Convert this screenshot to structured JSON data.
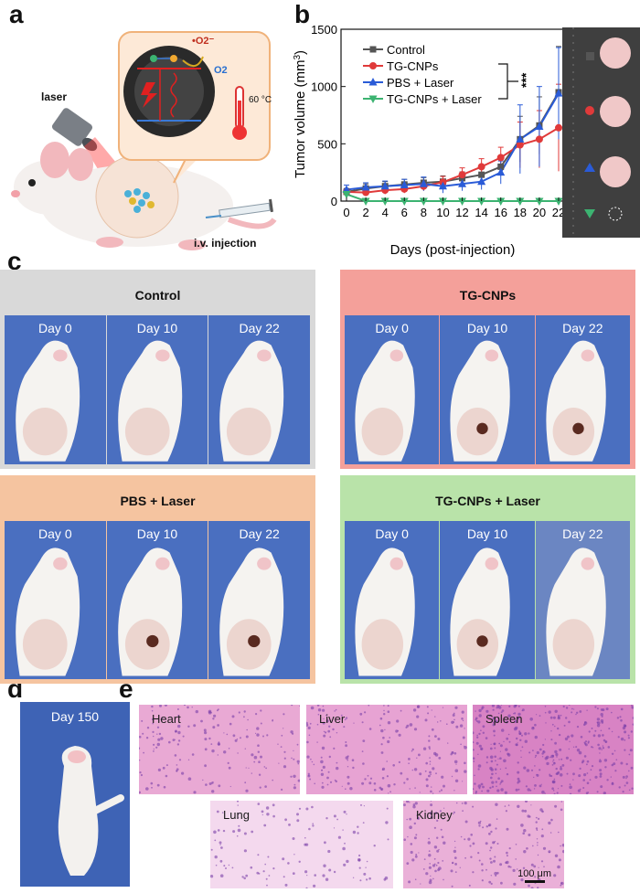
{
  "panel_labels": {
    "a": "a",
    "b": "b",
    "c": "c",
    "d": "d",
    "e": "e"
  },
  "panel_a": {
    "laser_label": "laser",
    "injection_label": "i.v. injection",
    "superoxide_label": "•O2⁻",
    "oxygen_label": "O2",
    "temperature_label": "60 °C"
  },
  "colors": {
    "control": "#555555",
    "tg_cnps": "#e03a3a",
    "pbs_laser": "#2a5bd7",
    "tg_cnps_laser": "#3cb371",
    "control_bg": "#d9d9d9",
    "tg_cnps_bg": "#f4a09a",
    "pbs_laser_bg": "#f5c4a0",
    "tg_cnps_laser_bg": "#b9e3a9"
  },
  "chart_data": {
    "type": "line",
    "xlabel": "Days (post-injection)",
    "ylabel": "Tumor volume (mm3)",
    "ylabel_main": "Tumor volume (mm",
    "ylabel_sup": "3",
    "ylabel_end": ")",
    "x": [
      0,
      2,
      4,
      6,
      8,
      10,
      12,
      14,
      16,
      18,
      20,
      22
    ],
    "ylim": [
      0,
      1500
    ],
    "yticks": [
      0,
      500,
      1000,
      1500
    ],
    "significance": "***",
    "series": [
      {
        "name": "Control",
        "marker": "square",
        "values": [
          80,
          110,
          130,
          145,
          160,
          170,
          200,
          230,
          300,
          540,
          660,
          950
        ],
        "err": [
          30,
          40,
          40,
          45,
          45,
          50,
          55,
          60,
          80,
          200,
          250,
          400
        ]
      },
      {
        "name": "TG-CNPs",
        "marker": "circle",
        "values": [
          80,
          75,
          95,
          105,
          130,
          165,
          230,
          300,
          380,
          490,
          540,
          640
        ],
        "err": [
          25,
          30,
          35,
          35,
          40,
          50,
          60,
          70,
          90,
          200,
          250,
          380
        ]
      },
      {
        "name": "PBS + Laser",
        "marker": "triangle-up",
        "values": [
          100,
          120,
          130,
          140,
          150,
          130,
          150,
          170,
          250,
          540,
          650,
          940
        ],
        "err": [
          40,
          40,
          45,
          50,
          60,
          60,
          60,
          70,
          100,
          300,
          350,
          400
        ]
      },
      {
        "name": "TG-CNPs + Laser",
        "marker": "triangle-down",
        "values": [
          60,
          0,
          0,
          0,
          0,
          0,
          0,
          0,
          0,
          0,
          0,
          0
        ],
        "err": [
          10,
          0,
          0,
          0,
          0,
          0,
          0,
          0,
          0,
          0,
          0,
          0
        ]
      }
    ]
  },
  "panel_c": {
    "groups": [
      {
        "title": "Control",
        "days": [
          "Day 0",
          "Day 10",
          "Day 22"
        ]
      },
      {
        "title": "TG-CNPs",
        "days": [
          "Day 0",
          "Day 10",
          "Day 22"
        ]
      },
      {
        "title": "PBS + Laser",
        "days": [
          "Day 0",
          "Day 10",
          "Day 22"
        ]
      },
      {
        "title": "TG-CNPs + Laser",
        "days": [
          "Day 0",
          "Day 10",
          "Day 22"
        ]
      }
    ]
  },
  "panel_d": {
    "day_label": "Day 150"
  },
  "panel_e": {
    "tiles": [
      {
        "label": "Heart"
      },
      {
        "label": "Liver"
      },
      {
        "label": "Spleen"
      },
      {
        "label": "Lung"
      },
      {
        "label": "Kidney"
      }
    ],
    "scale_bar": "100 μm"
  }
}
